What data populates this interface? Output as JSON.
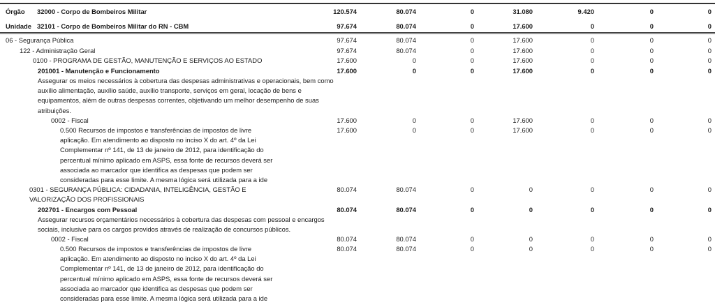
{
  "header_rows": [
    {
      "kind": "Órgão",
      "label": "32000 - Corpo de Bombeiros Militar",
      "values": [
        "120.574",
        "80.074",
        "0",
        "31.080",
        "9.420",
        "0",
        "0"
      ]
    },
    {
      "kind": "Unidade",
      "label": "32101 - Corpo de Bombeiros Militar do RN - CBM",
      "values": [
        "97.674",
        "80.074",
        "0",
        "17.600",
        "0",
        "0",
        "0"
      ]
    }
  ],
  "rows": [
    {
      "lines": [
        "06 - Segurança Pública"
      ],
      "bold": false,
      "values": [
        "97.674",
        "80.074",
        "0",
        "17.600",
        "0",
        "0",
        "0"
      ]
    },
    {
      "lines": [
        "122 - Administração Geral"
      ],
      "bold": false,
      "values": [
        "97.674",
        "80.074",
        "0",
        "17.600",
        "0",
        "0",
        "0"
      ]
    },
    {
      "lines": [
        "0100 - PROGRAMA DE GESTÃO, MANUTENÇÃO E SERVIÇOS AO ESTADO"
      ],
      "bold": false,
      "values": [
        "17.600",
        "0",
        "0",
        "17.600",
        "0",
        "0",
        "0"
      ]
    },
    {
      "lines": [
        "201001 - Manutenção e Funcionamento"
      ],
      "bold": true,
      "values": [
        "17.600",
        "0",
        "0",
        "17.600",
        "0",
        "0",
        "0"
      ]
    },
    {
      "lines": [
        "Assegurar os meios necessários à cobertura das despesas administrativas e operacionais, bem como",
        "auxílio alimentação, auxílio saúde, auxílio transporte, serviços em geral, locação de bens e",
        "equipamentos, além de outras despesas correntes, objetivando um melhor desempenho de suas",
        "atribuições."
      ],
      "bold": false,
      "values": []
    },
    {
      "lines": [
        "0002 - Fiscal"
      ],
      "bold": false,
      "values": [
        "17.600",
        "0",
        "0",
        "17.600",
        "0",
        "0",
        "0"
      ]
    },
    {
      "lines": [
        "0.500 Recursos de impostos e transferências de impostos de livre",
        "aplicação. Em atendimento ao disposto no inciso X do art. 4º da Lei",
        "Complementar nº 141, de 13 de janeiro de 2012, para identificação do",
        "percentual mínimo aplicado em ASPS, essa fonte de recursos deverá ser",
        "associada ao marcador que identifica as despesas que podem ser",
        "consideradas para esse limite. A mesma lógica será utilizada para a ide"
      ],
      "bold": false,
      "values": [
        "17.600",
        "0",
        "0",
        "17.600",
        "0",
        "0",
        "0"
      ]
    },
    {
      "lines": [
        "0301 - SEGURANÇA PÚBLICA: CIDADANIA, INTELIGÊNCIA, GESTÃO E",
        "VALORIZAÇÃO DOS PROFISSIONAIS"
      ],
      "bold": false,
      "values": [
        "80.074",
        "80.074",
        "0",
        "0",
        "0",
        "0",
        "0"
      ]
    },
    {
      "lines": [
        "202701 - Encargos com Pessoal"
      ],
      "bold": true,
      "values": [
        "80.074",
        "80.074",
        "0",
        "0",
        "0",
        "0",
        "0"
      ]
    },
    {
      "lines": [
        "Assegurar recursos orçamentários necessários à cobertura das despesas com pessoal e encargos",
        "sociais, inclusive para os cargos providos através de realização de concursos públicos."
      ],
      "bold": false,
      "values": []
    },
    {
      "lines": [
        "0002 - Fiscal"
      ],
      "bold": false,
      "values": [
        "80.074",
        "80.074",
        "0",
        "0",
        "0",
        "0",
        "0"
      ]
    },
    {
      "lines": [
        "0.500 Recursos de impostos e transferências de impostos de livre",
        "aplicação. Em atendimento ao disposto no inciso X do art. 4º da Lei",
        "Complementar nº 141, de 13 de janeiro de 2012, para identificação do",
        "percentual mínimo aplicado em ASPS, essa fonte de recursos deverá ser",
        "associada ao marcador que identifica as despesas que podem ser",
        "consideradas para esse limite. A mesma lógica será utilizada para a ide"
      ],
      "bold": false,
      "values": [
        "80.074",
        "80.074",
        "0",
        "0",
        "0",
        "0",
        "0"
      ]
    }
  ]
}
